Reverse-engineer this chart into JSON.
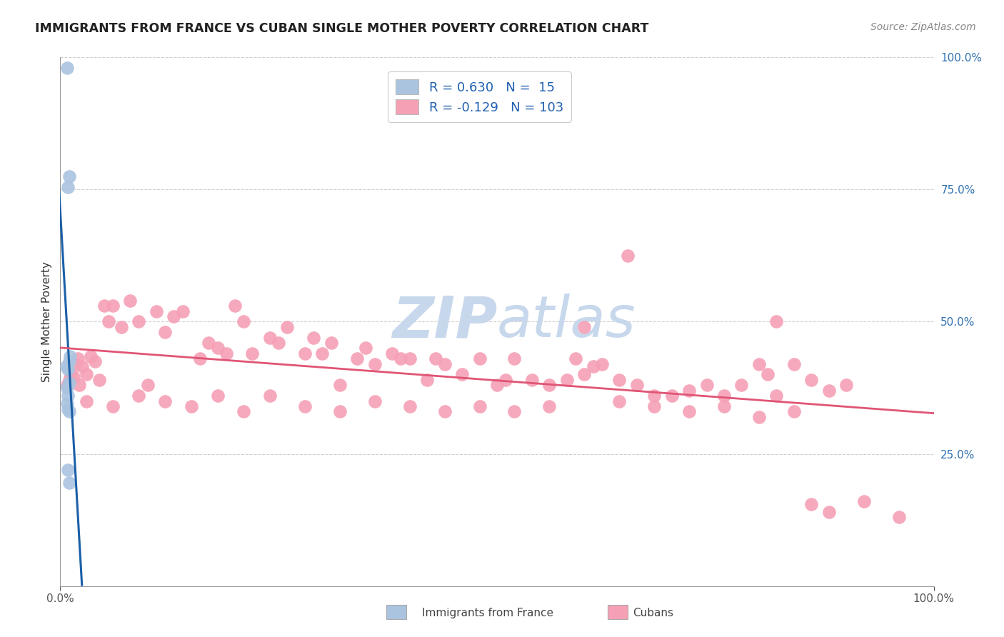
{
  "title": "IMMIGRANTS FROM FRANCE VS CUBAN SINGLE MOTHER POVERTY CORRELATION CHART",
  "source": "Source: ZipAtlas.com",
  "ylabel": "Single Mother Poverty",
  "blue_R": 0.63,
  "blue_N": 15,
  "pink_R": -0.129,
  "pink_N": 103,
  "blue_color": "#aac4e0",
  "blue_line_color": "#1a5fa8",
  "pink_color": "#f5a0b5",
  "pink_line_color": "#e05575",
  "watermark_color": "#c8d8ec",
  "background_color": "#ffffff",
  "grid_color": "#d0d0d0",
  "blue_scatter_x": [
    0.008,
    0.01,
    0.009,
    0.011,
    0.01,
    0.007,
    0.009,
    0.01,
    0.008,
    0.009,
    0.008,
    0.009,
    0.01,
    0.009,
    0.01
  ],
  "blue_scatter_y": [
    0.98,
    0.775,
    0.755,
    0.435,
    0.425,
    0.415,
    0.41,
    0.385,
    0.375,
    0.36,
    0.345,
    0.335,
    0.33,
    0.22,
    0.195
  ],
  "pink_scatter_x": [
    0.008,
    0.01,
    0.012,
    0.015,
    0.018,
    0.02,
    0.022,
    0.025,
    0.03,
    0.035,
    0.04,
    0.045,
    0.05,
    0.055,
    0.06,
    0.07,
    0.08,
    0.09,
    0.1,
    0.11,
    0.12,
    0.13,
    0.14,
    0.16,
    0.17,
    0.18,
    0.19,
    0.2,
    0.21,
    0.22,
    0.24,
    0.25,
    0.26,
    0.28,
    0.29,
    0.3,
    0.31,
    0.32,
    0.34,
    0.35,
    0.36,
    0.38,
    0.39,
    0.4,
    0.42,
    0.43,
    0.44,
    0.46,
    0.48,
    0.5,
    0.51,
    0.52,
    0.54,
    0.56,
    0.58,
    0.59,
    0.6,
    0.61,
    0.62,
    0.64,
    0.65,
    0.66,
    0.68,
    0.7,
    0.72,
    0.74,
    0.76,
    0.78,
    0.8,
    0.81,
    0.82,
    0.84,
    0.86,
    0.88,
    0.9,
    0.03,
    0.06,
    0.09,
    0.12,
    0.15,
    0.18,
    0.21,
    0.24,
    0.28,
    0.32,
    0.36,
    0.4,
    0.44,
    0.48,
    0.52,
    0.56,
    0.6,
    0.64,
    0.68,
    0.72,
    0.76,
    0.8,
    0.84,
    0.88,
    0.92,
    0.96,
    0.82,
    0.86
  ],
  "pink_scatter_y": [
    0.38,
    0.39,
    0.4,
    0.395,
    0.42,
    0.43,
    0.38,
    0.415,
    0.4,
    0.435,
    0.425,
    0.39,
    0.53,
    0.5,
    0.53,
    0.49,
    0.54,
    0.5,
    0.38,
    0.52,
    0.48,
    0.51,
    0.52,
    0.43,
    0.46,
    0.45,
    0.44,
    0.53,
    0.5,
    0.44,
    0.47,
    0.46,
    0.49,
    0.44,
    0.47,
    0.44,
    0.46,
    0.38,
    0.43,
    0.45,
    0.42,
    0.44,
    0.43,
    0.43,
    0.39,
    0.43,
    0.42,
    0.4,
    0.43,
    0.38,
    0.39,
    0.43,
    0.39,
    0.38,
    0.39,
    0.43,
    0.4,
    0.415,
    0.42,
    0.39,
    0.625,
    0.38,
    0.36,
    0.36,
    0.37,
    0.38,
    0.36,
    0.38,
    0.42,
    0.4,
    0.36,
    0.42,
    0.39,
    0.37,
    0.38,
    0.35,
    0.34,
    0.36,
    0.35,
    0.34,
    0.36,
    0.33,
    0.36,
    0.34,
    0.33,
    0.35,
    0.34,
    0.33,
    0.34,
    0.33,
    0.34,
    0.49,
    0.35,
    0.34,
    0.33,
    0.34,
    0.32,
    0.33,
    0.14,
    0.16,
    0.13,
    0.5,
    0.155
  ]
}
